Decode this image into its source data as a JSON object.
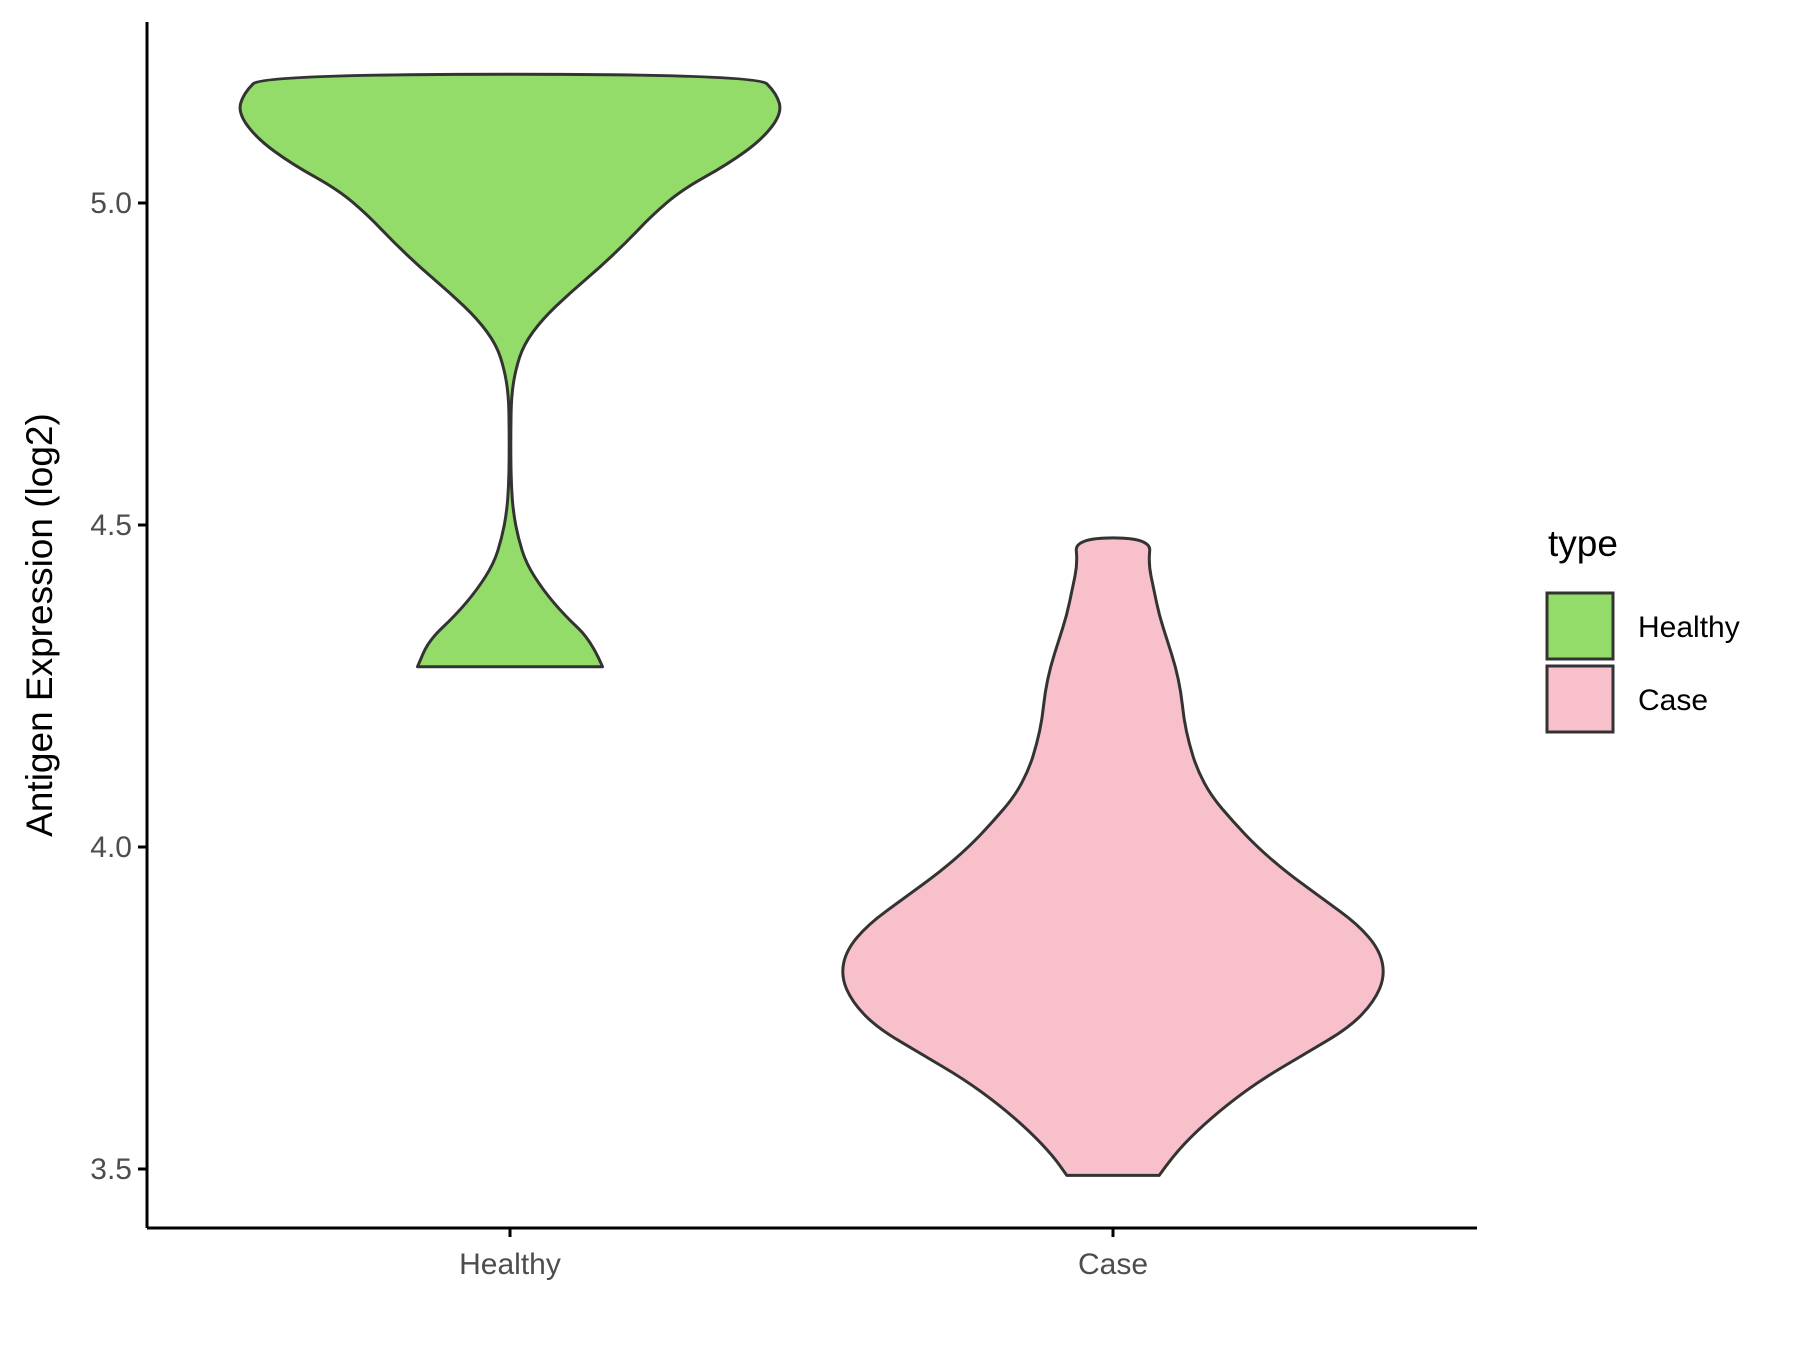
{
  "chart_data": {
    "type": "violin",
    "ylabel": "Antigen Expression (log2)",
    "xlabel": "",
    "ylim": [
      3.42,
      5.28
    ],
    "yticks": [
      3.5,
      4.0,
      4.5,
      5.0
    ],
    "ytick_labels": [
      "3.5",
      "4.0",
      "4.5",
      "5.0"
    ],
    "categories": [
      "Healthy",
      "Case"
    ],
    "grid": false,
    "series": [
      {
        "name": "Healthy",
        "color": "#93dc6a",
        "min": 4.28,
        "max": 5.2,
        "profile": [
          [
            4.28,
            0.34
          ],
          [
            4.32,
            0.3
          ],
          [
            4.36,
            0.2
          ],
          [
            4.4,
            0.12
          ],
          [
            4.44,
            0.06
          ],
          [
            4.48,
            0.03
          ],
          [
            4.52,
            0.012
          ],
          [
            4.56,
            0.005
          ],
          [
            4.6,
            0.003
          ],
          [
            4.65,
            0.003
          ],
          [
            4.7,
            0.005
          ],
          [
            4.74,
            0.02
          ],
          [
            4.78,
            0.05
          ],
          [
            4.82,
            0.12
          ],
          [
            4.86,
            0.22
          ],
          [
            4.9,
            0.33
          ],
          [
            4.94,
            0.43
          ],
          [
            4.98,
            0.52
          ],
          [
            5.02,
            0.63
          ],
          [
            5.06,
            0.8
          ],
          [
            5.1,
            0.93
          ],
          [
            5.14,
            1.0
          ],
          [
            5.17,
            0.98
          ],
          [
            5.2,
            0.91
          ]
        ]
      },
      {
        "name": "Case",
        "color": "#f8c0cb",
        "min": 3.49,
        "max": 4.48,
        "profile": [
          [
            3.49,
            0.17
          ],
          [
            3.52,
            0.22
          ],
          [
            3.56,
            0.31
          ],
          [
            3.6,
            0.42
          ],
          [
            3.64,
            0.55
          ],
          [
            3.68,
            0.71
          ],
          [
            3.72,
            0.87
          ],
          [
            3.76,
            0.96
          ],
          [
            3.8,
            1.0
          ],
          [
            3.84,
            0.98
          ],
          [
            3.88,
            0.9
          ],
          [
            3.92,
            0.77
          ],
          [
            3.96,
            0.64
          ],
          [
            4.0,
            0.53
          ],
          [
            4.04,
            0.44
          ],
          [
            4.08,
            0.36
          ],
          [
            4.12,
            0.31
          ],
          [
            4.16,
            0.28
          ],
          [
            4.2,
            0.26
          ],
          [
            4.24,
            0.25
          ],
          [
            4.28,
            0.23
          ],
          [
            4.32,
            0.2
          ],
          [
            4.36,
            0.17
          ],
          [
            4.4,
            0.15
          ],
          [
            4.44,
            0.13
          ],
          [
            4.48,
            0.14
          ]
        ]
      }
    ],
    "legend": {
      "title": "type",
      "position": "right",
      "entries": [
        {
          "label": "Healthy",
          "color": "#93dc6a"
        },
        {
          "label": "Case",
          "color": "#f8c0cb"
        }
      ]
    },
    "outline_color": "#333333",
    "axis_color": "#000000"
  }
}
